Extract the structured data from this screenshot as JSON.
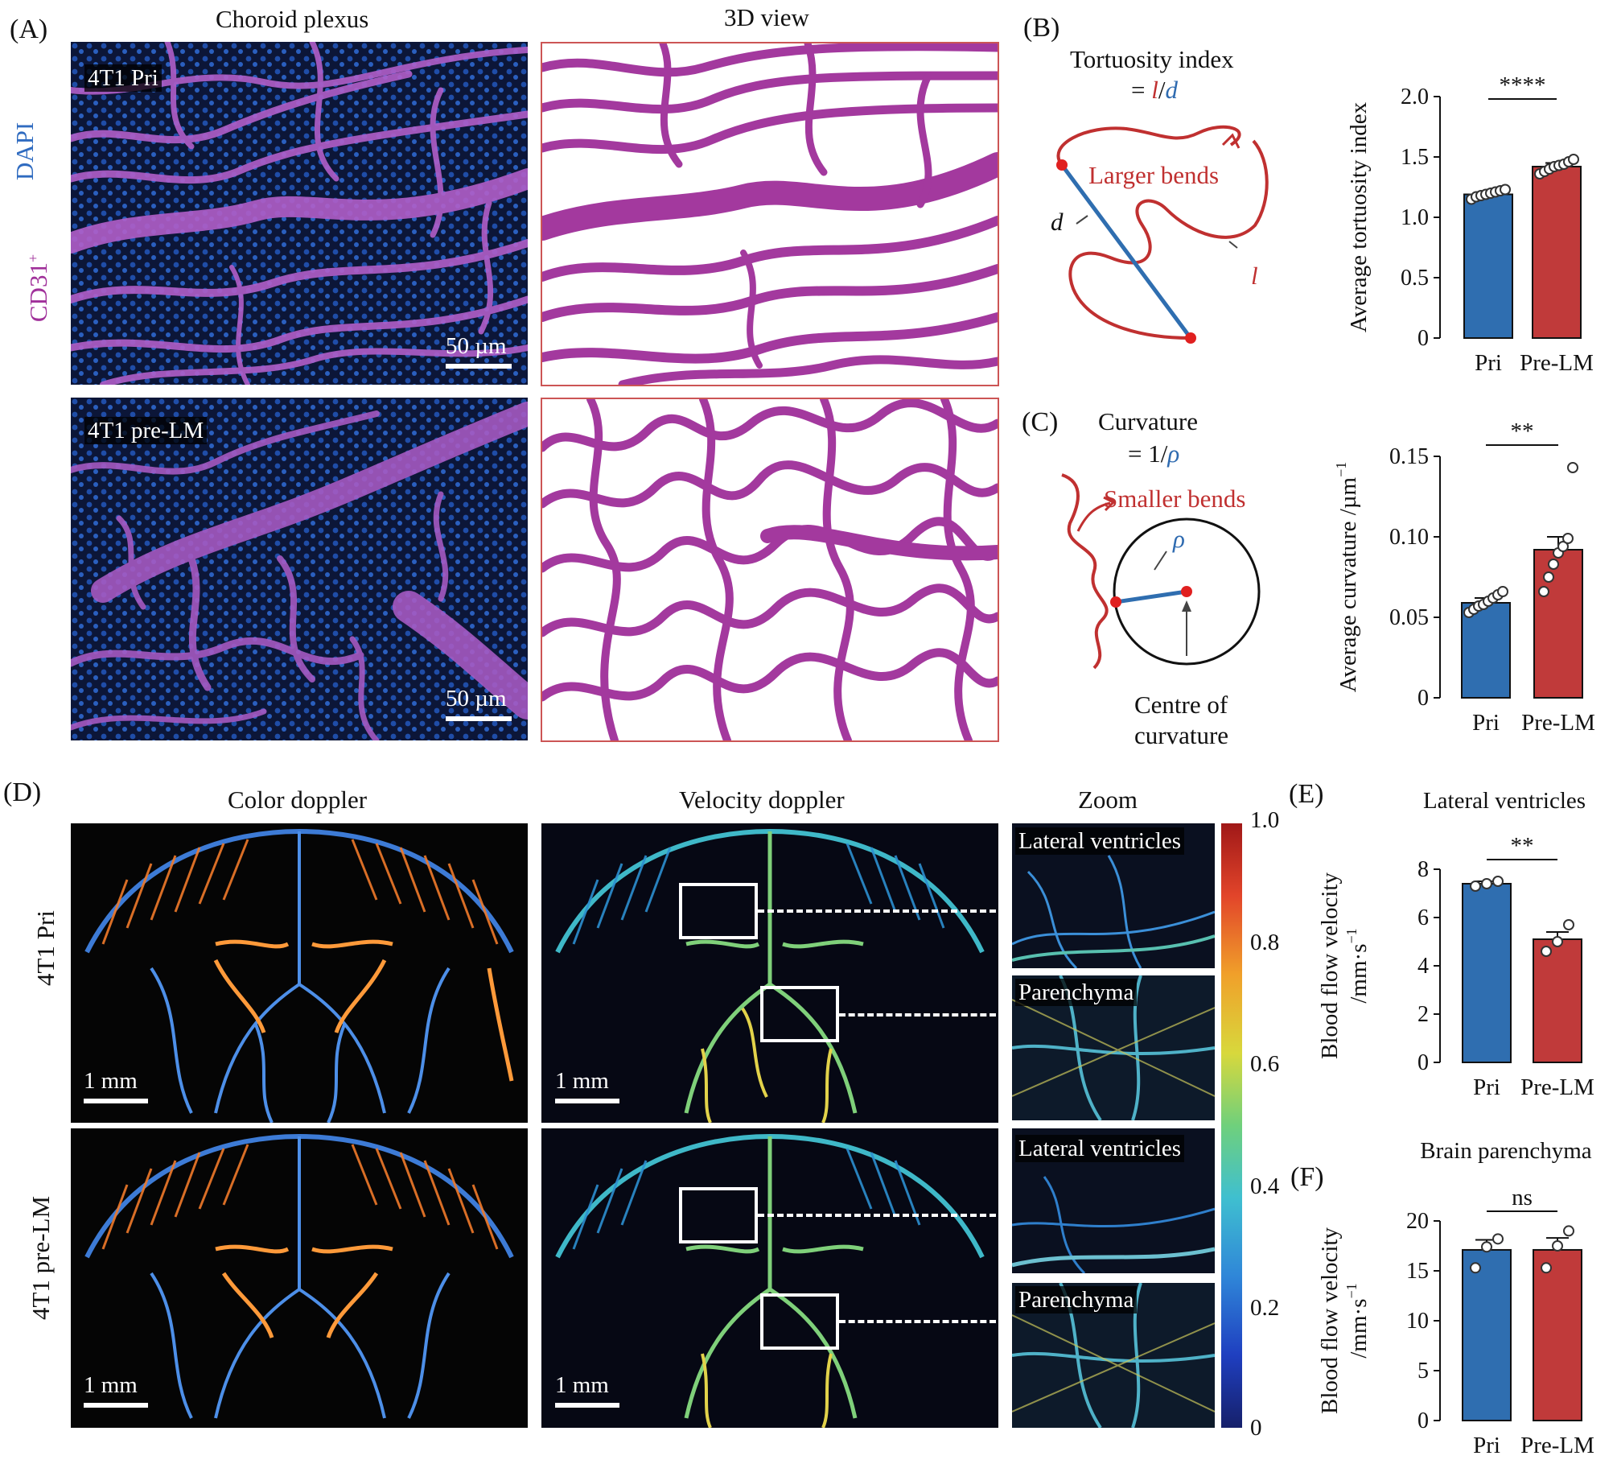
{
  "panelA": {
    "letter": "(A)",
    "col1_title": "Choroid plexus",
    "col2_title": "3D view",
    "stain_dapi": "DAPI",
    "stain_cd31": "CD31",
    "stain_cd31_sup": "+",
    "top_tag": "4T1 Pri",
    "bottom_tag": "4T1 pre-LM",
    "scale": "50 µm"
  },
  "panelB": {
    "letter": "(B)",
    "title_line1": "Tortuosity index",
    "title_eq": "= ",
    "title_l": "l",
    "title_slash": "/",
    "title_d": "d",
    "bend_label": "Larger bends",
    "d_label": "d",
    "l_label": "l"
  },
  "panelC": {
    "letter": "(C)",
    "title_line1": "Curvature",
    "title_eq": "= 1/",
    "title_rho": "ρ",
    "bend_label": "Smaller bends",
    "rho_label": "ρ",
    "centre_line1": "Centre of",
    "centre_line2": "curvature"
  },
  "panelD": {
    "letter": "(D)",
    "col1_title": "Color doppler",
    "col2_title": "Velocity doppler",
    "col3_title": "Zoom",
    "row1_label": "4T1 Pri",
    "row2_label": "4T1 pre-LM",
    "scale": "1 mm",
    "zoom_tags": [
      "Lateral ventricles",
      "Parenchyma",
      "Lateral ventricles",
      "Parenchyma"
    ],
    "colorbar_ticks": [
      "1.0",
      "0.8",
      "0.6",
      "0.4",
      "0.2",
      "0"
    ]
  },
  "panelE": {
    "letter": "(E)"
  },
  "panelF": {
    "letter": "(F)"
  },
  "chart_data": [
    {
      "id": "tortuosity",
      "type": "bar",
      "categories": [
        "Pri",
        "Pre-LM"
      ],
      "values": [
        1.19,
        1.42
      ],
      "errors": [
        0.02,
        0.03
      ],
      "points": [
        [
          1.15,
          1.17,
          1.18,
          1.19,
          1.2,
          1.21,
          1.22,
          1.23
        ],
        [
          1.36,
          1.38,
          1.4,
          1.42,
          1.43,
          1.44,
          1.46,
          1.48
        ]
      ],
      "ylabel": "Average tortuosity index",
      "ylim": [
        0,
        2.0
      ],
      "yticks": [
        "0",
        "0.5",
        "1.0",
        "1.5",
        "2.0"
      ],
      "significance": "****",
      "colors": [
        "#2f6eb0",
        "#c03a3a"
      ]
    },
    {
      "id": "curvature",
      "type": "bar",
      "categories": [
        "Pri",
        "Pre-LM"
      ],
      "values": [
        0.059,
        0.092
      ],
      "errors": [
        0.003,
        0.008
      ],
      "points": [
        [
          0.053,
          0.055,
          0.057,
          0.058,
          0.06,
          0.062,
          0.064,
          0.066
        ],
        [
          0.066,
          0.075,
          0.083,
          0.09,
          0.094,
          0.099,
          0.143
        ]
      ],
      "ylabel": "Average curvature /µm",
      "ylabel_sup": "−1",
      "ylim": [
        0,
        0.15
      ],
      "yticks": [
        "0",
        "0.05",
        "0.10",
        "0.15"
      ],
      "significance": "**",
      "colors": [
        "#2f6eb0",
        "#c03a3a"
      ]
    },
    {
      "id": "lateral",
      "type": "bar",
      "title": "Lateral ventricles",
      "categories": [
        "Pri",
        "Pre-LM"
      ],
      "values": [
        7.4,
        5.1
      ],
      "errors": [
        0.1,
        0.3
      ],
      "points": [
        [
          7.3,
          7.4,
          7.5
        ],
        [
          4.6,
          5.0,
          5.7
        ]
      ],
      "ylabel_line1": "Blood flow velocity",
      "ylabel_line2": "/mm·s",
      "ylabel_sup": "−1",
      "ylim": [
        0,
        8
      ],
      "yticks": [
        "0",
        "2",
        "4",
        "6",
        "8"
      ],
      "significance": "**",
      "colors": [
        "#2f6eb0",
        "#c03a3a"
      ]
    },
    {
      "id": "parenchyma",
      "type": "bar",
      "title": "Brain parenchyma",
      "categories": [
        "Pri",
        "Pre-LM"
      ],
      "values": [
        17.1,
        17.1
      ],
      "errors": [
        1.0,
        1.2
      ],
      "points": [
        [
          15.3,
          17.4,
          18.2
        ],
        [
          15.3,
          17.5,
          19.0
        ]
      ],
      "ylabel_line1": "Blood flow velocity",
      "ylabel_line2": "/mm·s",
      "ylabel_sup": "−1",
      "ylim": [
        0,
        20
      ],
      "yticks": [
        "0",
        "5",
        "10",
        "15",
        "20"
      ],
      "significance": "ns",
      "colors": [
        "#2f6eb0",
        "#c03a3a"
      ]
    }
  ]
}
